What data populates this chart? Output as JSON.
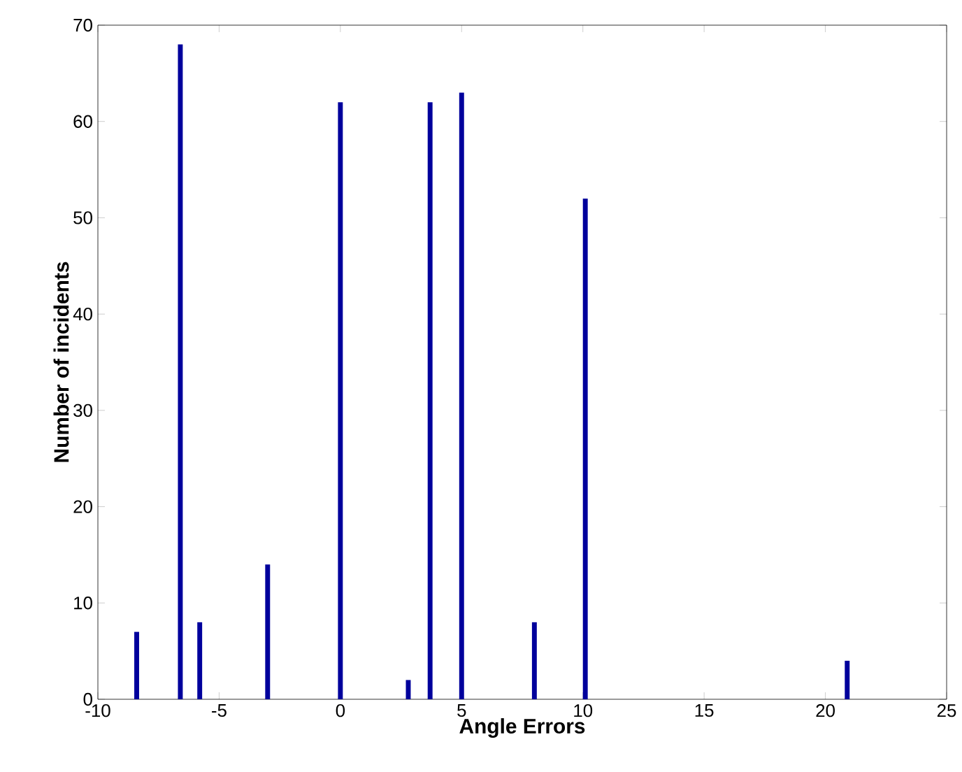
{
  "chart_data": {
    "type": "bar",
    "xlabel": "Angle Errors",
    "ylabel": "Number of incidents",
    "x": [
      -8.4,
      -6.6,
      -5.8,
      -3,
      0,
      2.8,
      3.7,
      5,
      8,
      10.1,
      20.9
    ],
    "values": [
      7,
      68,
      8,
      14,
      62,
      2,
      62,
      63,
      8,
      52,
      4
    ],
    "color": "#00009c",
    "xlim": [
      -10,
      25
    ],
    "xticks": [
      -10,
      -5,
      0,
      5,
      10,
      15,
      20,
      25
    ],
    "ylim": [
      0,
      70
    ],
    "yticks": [
      0,
      10,
      20,
      30,
      40,
      50,
      60,
      70
    ],
    "grid": false
  }
}
